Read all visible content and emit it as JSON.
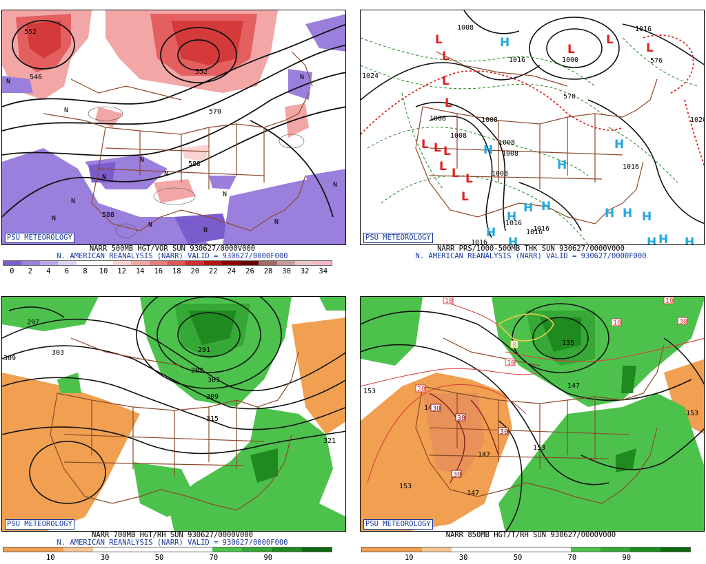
{
  "panels": {
    "p1": {
      "logo": "PSU METEOROLOGY",
      "caption1": "NARR 500MB HGT/VOR SUN 930627/0000V000",
      "caption2": "N. AMERICAN REANALYSIS (NARR) VALID = 930627/0000F000",
      "colorbar_ticks": [
        "0",
        "2",
        "4",
        "6",
        "8",
        "10",
        "12",
        "14",
        "16",
        "18",
        "20",
        "22",
        "24",
        "26",
        "28",
        "30",
        "32",
        "34"
      ],
      "colorbar_colors": [
        "#7b5ccd",
        "#9a7fdc",
        "#bba7e8",
        "#dcd2f2",
        "#ffffff",
        "#ffffff",
        "#f9d2d2",
        "#f2a6a6",
        "#ea7c7c",
        "#e05555",
        "#cf2f2f",
        "#b31414",
        "#8f0000",
        "#6a0000",
        "#a06a6a",
        "#c79a9a",
        "#e8c6c6",
        "#f5b5c8"
      ],
      "map_labels": [
        "552",
        "552",
        "546",
        "570",
        "588",
        "588",
        "N",
        "N",
        "N",
        "N",
        "N",
        "N",
        "N",
        "N",
        "N",
        "N",
        "N",
        "N",
        "N"
      ]
    },
    "p2": {
      "logo": "PSU METEOROLOGY",
      "caption1": "NARR PRS/1000-500MB THK SUN 930627/0000V000",
      "caption2": "N. AMERICAN REANALYSIS (NARR) VALID = 930627/0000F000",
      "pressure_labels": [
        "1008",
        "1008",
        "1008",
        "1008",
        "1008",
        "1008",
        "1008",
        "1000",
        "1016",
        "1016",
        "1016",
        "1016",
        "1016",
        "1016",
        "1016",
        "1024",
        "1020"
      ],
      "thickness_labels": [
        "570",
        "576"
      ],
      "highs": [
        "H",
        "H",
        "H",
        "H",
        "H",
        "H",
        "H",
        "H",
        "H",
        "H",
        "H",
        "H",
        "H",
        "H",
        "H"
      ],
      "lows": [
        "L",
        "L",
        "L",
        "L",
        "L",
        "L",
        "L",
        "L",
        "L",
        "L",
        "L",
        "L",
        "L",
        "L"
      ],
      "high_color": "#22a9e0",
      "low_color": "#e02020"
    },
    "p3": {
      "logo": "PSU METEOROLOGY",
      "caption1": "NARR 700MB HGT/RH SUN 930627/0000V000",
      "caption2": "N. AMERICAN REANALYSIS (NARR) VALID = 930627/0000F000",
      "colorbar_ticks": [
        "10",
        "30",
        "50",
        "70",
        "90"
      ],
      "colorbar_colors": [
        "#f0a050",
        "#f0a050",
        "#f7c896",
        "#ffffff",
        "#ffffff",
        "#ffffff",
        "#ffffff",
        "#4cc24c",
        "#36a836",
        "#1f8a1f",
        "#0f6a0f"
      ],
      "map_labels": [
        "297",
        "303",
        "309",
        "291",
        "297",
        "303",
        "309",
        "315",
        "321"
      ]
    },
    "p4": {
      "logo": "PSU METEOROLOGY",
      "caption1": "NARR 850MB HGT/T/RH SUN 930627/0000V000",
      "caption2": "",
      "colorbar_ticks": [
        "10",
        "30",
        "50",
        "70",
        "90"
      ],
      "colorbar_colors": [
        "#f0a050",
        "#f0a050",
        "#f7c896",
        "#ffffff",
        "#ffffff",
        "#ffffff",
        "#ffffff",
        "#4cc24c",
        "#36a836",
        "#1f8a1f",
        "#0f6a0f"
      ],
      "height_labels": [
        "153",
        "147",
        "135",
        "147",
        "153",
        "153",
        "147",
        "147",
        "153"
      ],
      "temp_labels": [
        "10",
        "10",
        "10",
        "10",
        "20",
        "30",
        "30",
        "30",
        "30",
        "30",
        "0"
      ]
    }
  }
}
